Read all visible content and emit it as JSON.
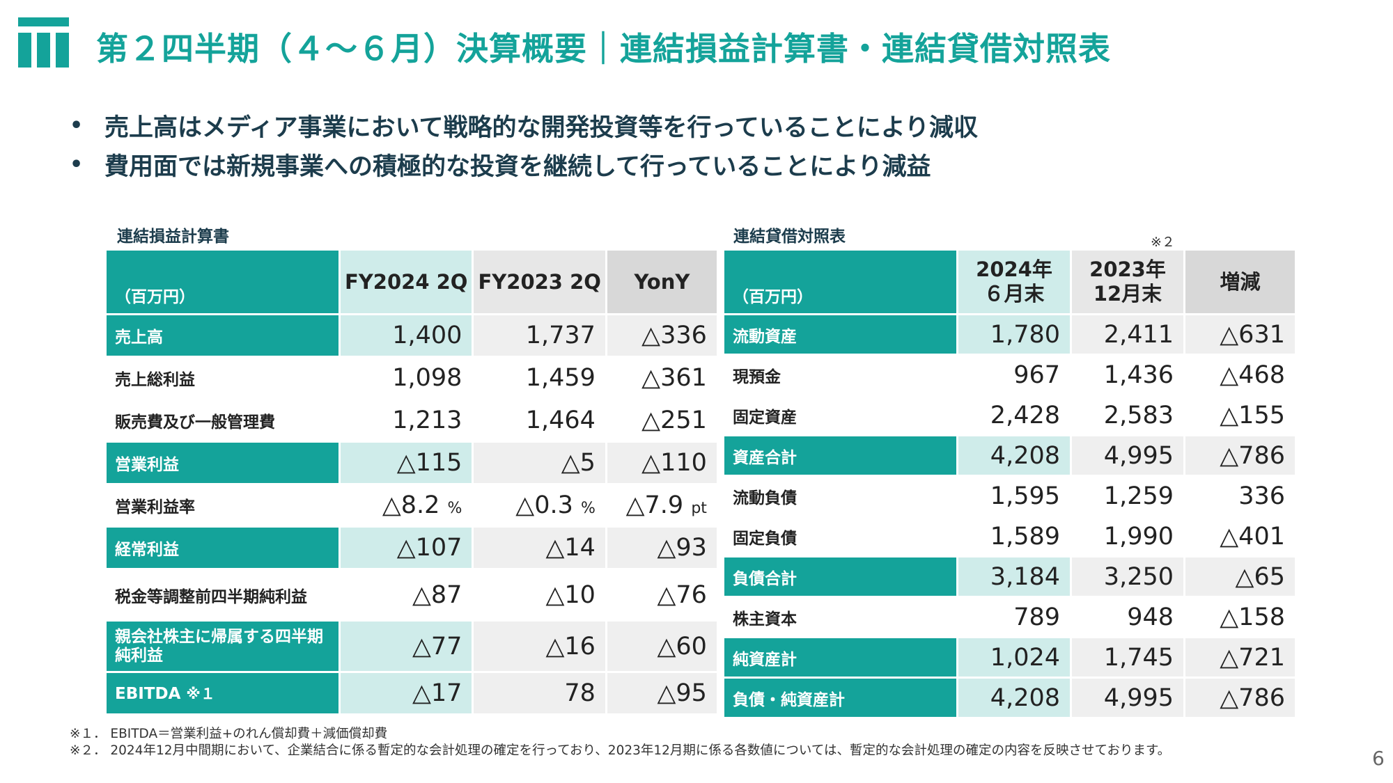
{
  "title": "第２四半期（４～６月）決算概要｜連結損益計算書・連結貸借対照表",
  "bullets": [
    "売上高はメディア事業において戦略的な開発投資等を行っていることにより減収",
    "費用面では新規事業への積極的な投資を継続して行っていることにより減益"
  ],
  "pl": {
    "caption": "連結損益計算書",
    "unit": "（百万円）",
    "headers": [
      "FY2024 2Q",
      "FY2023 2Q",
      "YonY"
    ],
    "rows": [
      {
        "label": "売上高",
        "v": [
          "1,400",
          "1,737",
          "△336"
        ]
      },
      {
        "label": "売上総利益",
        "v": [
          "1,098",
          "1,459",
          "△361"
        ]
      },
      {
        "label": "販売費及び一般管理費",
        "v": [
          "1,213",
          "1,464",
          "△251"
        ]
      },
      {
        "label": "営業利益",
        "v": [
          "△115",
          "△5",
          "△110"
        ]
      },
      {
        "label": "営業利益率",
        "v": [
          "△8.2",
          "△0.3",
          "△7.9"
        ],
        "units": [
          "%",
          "%",
          "pt"
        ]
      },
      {
        "label": "経常利益",
        "v": [
          "△107",
          "△14",
          "△93"
        ]
      },
      {
        "label": "税金等調整前四半期純利益",
        "v": [
          "△87",
          "△10",
          "△76"
        ]
      },
      {
        "label": "親会社株主に帰属する四半期純利益",
        "v": [
          "△77",
          "△16",
          "△60"
        ]
      },
      {
        "label": "EBITDA",
        "mark": "※１",
        "v": [
          "△17",
          "78",
          "△95"
        ]
      }
    ]
  },
  "bs": {
    "caption": "連結貸借対照表",
    "note": "※２",
    "unit": "（百万円）",
    "headers": [
      "2024年 ６月末",
      "2023年 12月末",
      "増減"
    ],
    "rows": [
      {
        "label": "流動資産",
        "v": [
          "1,780",
          "2,411",
          "△631"
        ]
      },
      {
        "label": "現預金",
        "v": [
          "967",
          "1,436",
          "△468"
        ]
      },
      {
        "label": "固定資産",
        "v": [
          "2,428",
          "2,583",
          "△155"
        ]
      },
      {
        "label": "資産合計",
        "v": [
          "4,208",
          "4,995",
          "△786"
        ]
      },
      {
        "label": "流動負債",
        "v": [
          "1,595",
          "1,259",
          "336"
        ]
      },
      {
        "label": "固定負債",
        "v": [
          "1,589",
          "1,990",
          "△401"
        ]
      },
      {
        "label": "負債合計",
        "v": [
          "3,184",
          "3,250",
          "△65"
        ]
      },
      {
        "label": "株主資本",
        "v": [
          "789",
          "948",
          "△158"
        ]
      },
      {
        "label": "純資産計",
        "v": [
          "1,024",
          "1,745",
          "△721"
        ]
      },
      {
        "label": "負債・純資産計",
        "v": [
          "4,208",
          "4,995",
          "△786"
        ]
      }
    ]
  },
  "footnotes": [
    "※１． EBITDA＝営業利益+のれん償却費＋減価償却費",
    "※２． 2024年12月中間期において、企業結合に係る暫定的な会計処理の確定を行っており、2023年12月期に係る各数値については、暫定的な会計処理の確定の内容を反映させております。"
  ],
  "page_number": "6",
  "colors": {
    "accent": "#14a39a",
    "accent_light": "#cfecea",
    "text_dark": "#1c3c4c"
  }
}
